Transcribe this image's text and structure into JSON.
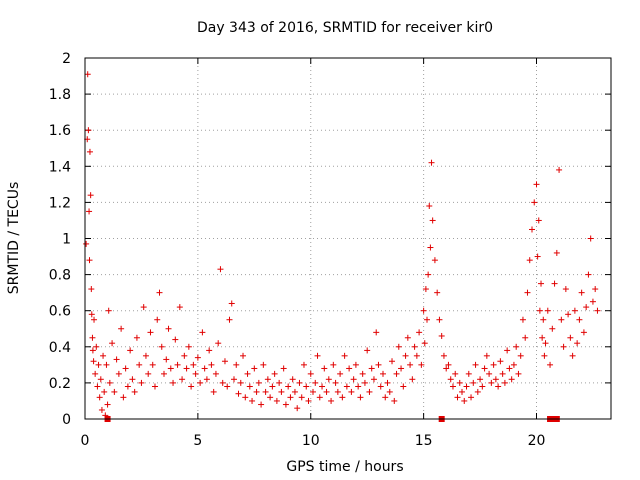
{
  "chart_data": {
    "type": "scatter",
    "title": "Day 343 of 2016, SRMTID for receiver kir0",
    "xlabel": "GPS time / hours",
    "ylabel": "SRMTID / TECUs",
    "xlim": [
      0,
      23.3
    ],
    "ylim": [
      0,
      2
    ],
    "x_ticks": [
      0,
      5,
      10,
      15,
      20
    ],
    "y_ticks": [
      0,
      0.2,
      0.4,
      0.6,
      0.8,
      1,
      1.2,
      1.4,
      1.6,
      1.8,
      2
    ],
    "x_tick_labels": [
      "0",
      "5",
      "10",
      "15",
      "20"
    ],
    "y_tick_labels": [
      "0",
      "0.2",
      "0.4",
      "0.6",
      "0.8",
      "1",
      "1.2",
      "1.4",
      "1.6",
      "1.8",
      "2"
    ],
    "grid": true,
    "marker": "+",
    "color": "#e00000",
    "series": [
      {
        "name": "SRMTID",
        "x": [
          0.05,
          0.1,
          0.12,
          0.15,
          0.18,
          0.2,
          0.22,
          0.25,
          0.28,
          0.3,
          0.33,
          0.35,
          0.38,
          0.4,
          0.45,
          0.5,
          0.55,
          0.6,
          0.65,
          0.7,
          0.75,
          0.8,
          0.85,
          0.9,
          0.95,
          1.0,
          1.05,
          1.1,
          1.2,
          1.3,
          1.4,
          1.5,
          1.6,
          1.7,
          1.8,
          1.9,
          2.0,
          2.1,
          2.2,
          2.3,
          2.4,
          2.5,
          2.6,
          2.7,
          2.8,
          2.9,
          3.0,
          3.1,
          3.2,
          3.3,
          3.4,
          3.5,
          3.6,
          3.7,
          3.8,
          3.9,
          4.0,
          4.1,
          4.2,
          4.3,
          4.4,
          4.5,
          4.6,
          4.7,
          4.8,
          4.9,
          5.0,
          5.1,
          5.2,
          5.3,
          5.4,
          5.5,
          5.6,
          5.7,
          5.8,
          5.9,
          6.0,
          6.1,
          6.2,
          6.3,
          6.4,
          6.5,
          6.6,
          6.7,
          6.8,
          6.9,
          7.0,
          7.1,
          7.2,
          7.3,
          7.4,
          7.5,
          7.6,
          7.7,
          7.8,
          7.9,
          8.0,
          8.1,
          8.2,
          8.3,
          8.4,
          8.5,
          8.6,
          8.7,
          8.8,
          8.9,
          9.0,
          9.1,
          9.2,
          9.3,
          9.4,
          9.5,
          9.6,
          9.7,
          9.8,
          9.9,
          10.0,
          10.1,
          10.2,
          10.3,
          10.4,
          10.5,
          10.6,
          10.7,
          10.8,
          10.9,
          11.0,
          11.1,
          11.2,
          11.3,
          11.4,
          11.5,
          11.6,
          11.7,
          11.8,
          11.9,
          12.0,
          12.1,
          12.2,
          12.3,
          12.4,
          12.5,
          12.6,
          12.7,
          12.8,
          12.9,
          13.0,
          13.1,
          13.2,
          13.3,
          13.4,
          13.5,
          13.6,
          13.7,
          13.8,
          13.9,
          14.0,
          14.1,
          14.2,
          14.3,
          14.4,
          14.5,
          14.6,
          14.7,
          14.8,
          14.9,
          15.0,
          15.05,
          15.1,
          15.15,
          15.2,
          15.25,
          15.3,
          15.35,
          15.4,
          15.5,
          15.6,
          15.7,
          15.8,
          15.9,
          16.0,
          16.1,
          16.2,
          16.3,
          16.4,
          16.5,
          16.6,
          16.7,
          16.8,
          16.9,
          17.0,
          17.1,
          17.2,
          17.3,
          17.4,
          17.5,
          17.6,
          17.7,
          17.8,
          17.9,
          18.0,
          18.1,
          18.2,
          18.3,
          18.4,
          18.5,
          18.6,
          18.7,
          18.8,
          18.9,
          19.0,
          19.1,
          19.2,
          19.3,
          19.4,
          19.5,
          19.6,
          19.7,
          19.8,
          19.9,
          20.0,
          20.05,
          20.1,
          20.15,
          20.2,
          20.25,
          20.3,
          20.35,
          20.4,
          20.5,
          20.6,
          20.7,
          20.8,
          20.9,
          21.0,
          21.1,
          21.2,
          21.3,
          21.4,
          21.5,
          21.6,
          21.7,
          21.8,
          21.9,
          22.0,
          22.1,
          22.2,
          22.3,
          22.4,
          22.5,
          22.6,
          22.7
        ],
        "y": [
          0.97,
          1.55,
          1.91,
          1.6,
          1.15,
          0.88,
          1.48,
          1.24,
          0.72,
          0.58,
          0.45,
          0.38,
          0.32,
          0.55,
          0.25,
          0.4,
          0.18,
          0.3,
          0.12,
          0.22,
          0.05,
          0.35,
          0.15,
          0.02,
          0.3,
          0.08,
          0.6,
          0.2,
          0.42,
          0.15,
          0.33,
          0.25,
          0.5,
          0.12,
          0.28,
          0.18,
          0.38,
          0.22,
          0.15,
          0.45,
          0.3,
          0.2,
          0.62,
          0.35,
          0.25,
          0.48,
          0.3,
          0.18,
          0.55,
          0.7,
          0.4,
          0.25,
          0.33,
          0.5,
          0.28,
          0.2,
          0.44,
          0.3,
          0.62,
          0.22,
          0.35,
          0.28,
          0.4,
          0.18,
          0.3,
          0.25,
          0.34,
          0.2,
          0.48,
          0.28,
          0.22,
          0.38,
          0.3,
          0.15,
          0.25,
          0.42,
          0.83,
          0.2,
          0.32,
          0.18,
          0.55,
          0.64,
          0.22,
          0.3,
          0.14,
          0.2,
          0.35,
          0.12,
          0.25,
          0.18,
          0.1,
          0.28,
          0.15,
          0.2,
          0.08,
          0.3,
          0.15,
          0.22,
          0.12,
          0.18,
          0.25,
          0.1,
          0.2,
          0.15,
          0.28,
          0.08,
          0.18,
          0.12,
          0.22,
          0.15,
          0.06,
          0.2,
          0.12,
          0.3,
          0.18,
          0.1,
          0.25,
          0.15,
          0.2,
          0.35,
          0.12,
          0.18,
          0.28,
          0.15,
          0.22,
          0.1,
          0.3,
          0.2,
          0.15,
          0.25,
          0.12,
          0.35,
          0.18,
          0.28,
          0.15,
          0.22,
          0.3,
          0.18,
          0.12,
          0.25,
          0.2,
          0.38,
          0.15,
          0.28,
          0.22,
          0.48,
          0.3,
          0.18,
          0.25,
          0.12,
          0.2,
          0.15,
          0.32,
          0.1,
          0.25,
          0.4,
          0.28,
          0.18,
          0.35,
          0.45,
          0.3,
          0.22,
          0.4,
          0.35,
          0.48,
          0.3,
          0.6,
          0.42,
          0.72,
          0.55,
          0.8,
          1.18,
          0.95,
          1.42,
          1.1,
          0.88,
          0.7,
          0.55,
          0.46,
          0.35,
          0.28,
          0.3,
          0.22,
          0.18,
          0.25,
          0.12,
          0.2,
          0.15,
          0.1,
          0.18,
          0.25,
          0.12,
          0.2,
          0.3,
          0.15,
          0.22,
          0.18,
          0.28,
          0.35,
          0.25,
          0.2,
          0.3,
          0.22,
          0.18,
          0.32,
          0.25,
          0.2,
          0.38,
          0.28,
          0.22,
          0.3,
          0.4,
          0.25,
          0.35,
          0.55,
          0.45,
          0.7,
          0.88,
          1.05,
          1.2,
          1.3,
          0.9,
          1.1,
          0.6,
          0.75,
          0.45,
          0.55,
          0.35,
          0.42,
          0.6,
          0.3,
          0.5,
          0.75,
          0.92,
          1.38,
          0.55,
          0.4,
          0.72,
          0.58,
          0.45,
          0.35,
          0.6,
          0.42,
          0.55,
          0.7,
          0.48,
          0.62,
          0.8,
          1.0,
          0.65,
          0.72,
          0.6
        ]
      }
    ],
    "zero_markers_x": [
      1.0,
      15.8,
      20.6,
      20.75,
      20.9
    ]
  }
}
